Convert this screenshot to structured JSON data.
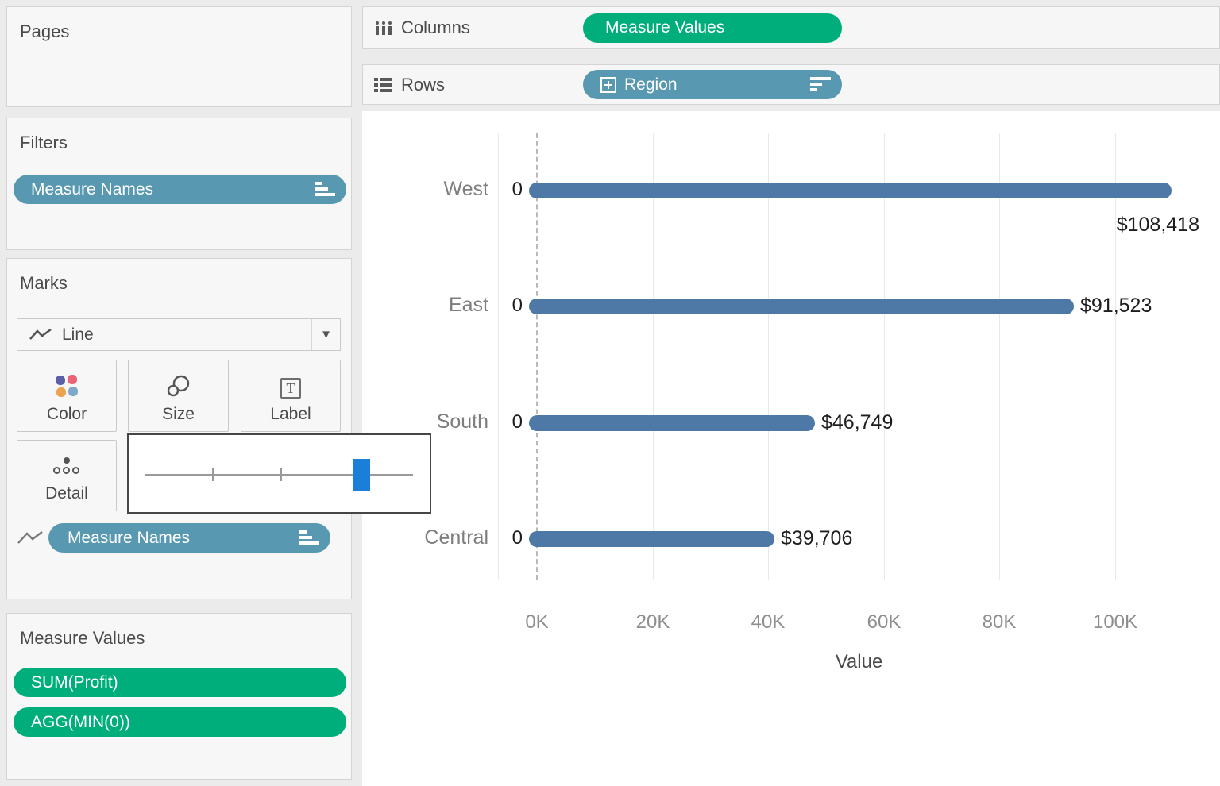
{
  "sidebar": {
    "pages": {
      "title": "Pages"
    },
    "filters": {
      "title": "Filters",
      "pills": [
        {
          "label": "Measure Names",
          "sort_icon": "sort-ascending-icon",
          "color": "#5899b1"
        }
      ]
    },
    "marks": {
      "title": "Marks",
      "mark_type": "Line",
      "mark_type_icon": "line-mark-icon",
      "buttons": [
        {
          "label": "Color",
          "icon": "color-icon"
        },
        {
          "label": "Size",
          "icon": "size-icon"
        },
        {
          "label": "Label",
          "icon": "label-icon"
        },
        {
          "label": "Detail",
          "icon": "detail-icon"
        }
      ],
      "pill": {
        "label": "Measure Names",
        "sort_icon": "sort-ascending-icon",
        "color": "#5899b1"
      }
    },
    "measure_values": {
      "title": "Measure Values",
      "pills": [
        {
          "label": "SUM(Profit)",
          "color": "#00ae7c"
        },
        {
          "label": "AGG(MIN(0))",
          "color": "#00ae7c"
        }
      ]
    }
  },
  "shelves": {
    "columns": {
      "label": "Columns",
      "icon": "columns-icon",
      "pill": {
        "label": "Measure Values",
        "color": "#00ae7c"
      }
    },
    "rows": {
      "label": "Rows",
      "icon": "rows-icon",
      "pill": {
        "label": "Region",
        "color": "#5899b1",
        "left_icon": "expand-icon",
        "sort_icon": "sort-descending-icon"
      }
    }
  },
  "size_popup": {
    "handle_color": "#1b7ed8",
    "tick_count": 2
  },
  "colors": {
    "bar_blue": "#4e79a7",
    "pill_green": "#00ae7c",
    "pill_teal": "#5899b1",
    "slider_handle_blue": "#1b7ed8"
  },
  "chart_data": {
    "type": "bar",
    "orientation": "horizontal",
    "categories": [
      "West",
      "East",
      "South",
      "Central"
    ],
    "values": [
      108418,
      91523,
      46749,
      39706
    ],
    "bar_labels": [
      "$108,418",
      "$91,523",
      "$46,749",
      "$39,706"
    ],
    "zero_labels": [
      "0",
      "0",
      "0",
      "0"
    ],
    "label_placement": [
      "below-end",
      "right",
      "right",
      "right"
    ],
    "x_ticks": {
      "values": [
        0,
        20000,
        40000,
        60000,
        80000,
        100000
      ],
      "labels": [
        "0K",
        "20K",
        "40K",
        "60K",
        "80K",
        "100K"
      ]
    },
    "xlabel": "Value",
    "xlim": [
      -6700,
      118000
    ],
    "grid": true,
    "zero_line": "dashed",
    "bar_color": "#4e79a7",
    "legend": "none"
  }
}
